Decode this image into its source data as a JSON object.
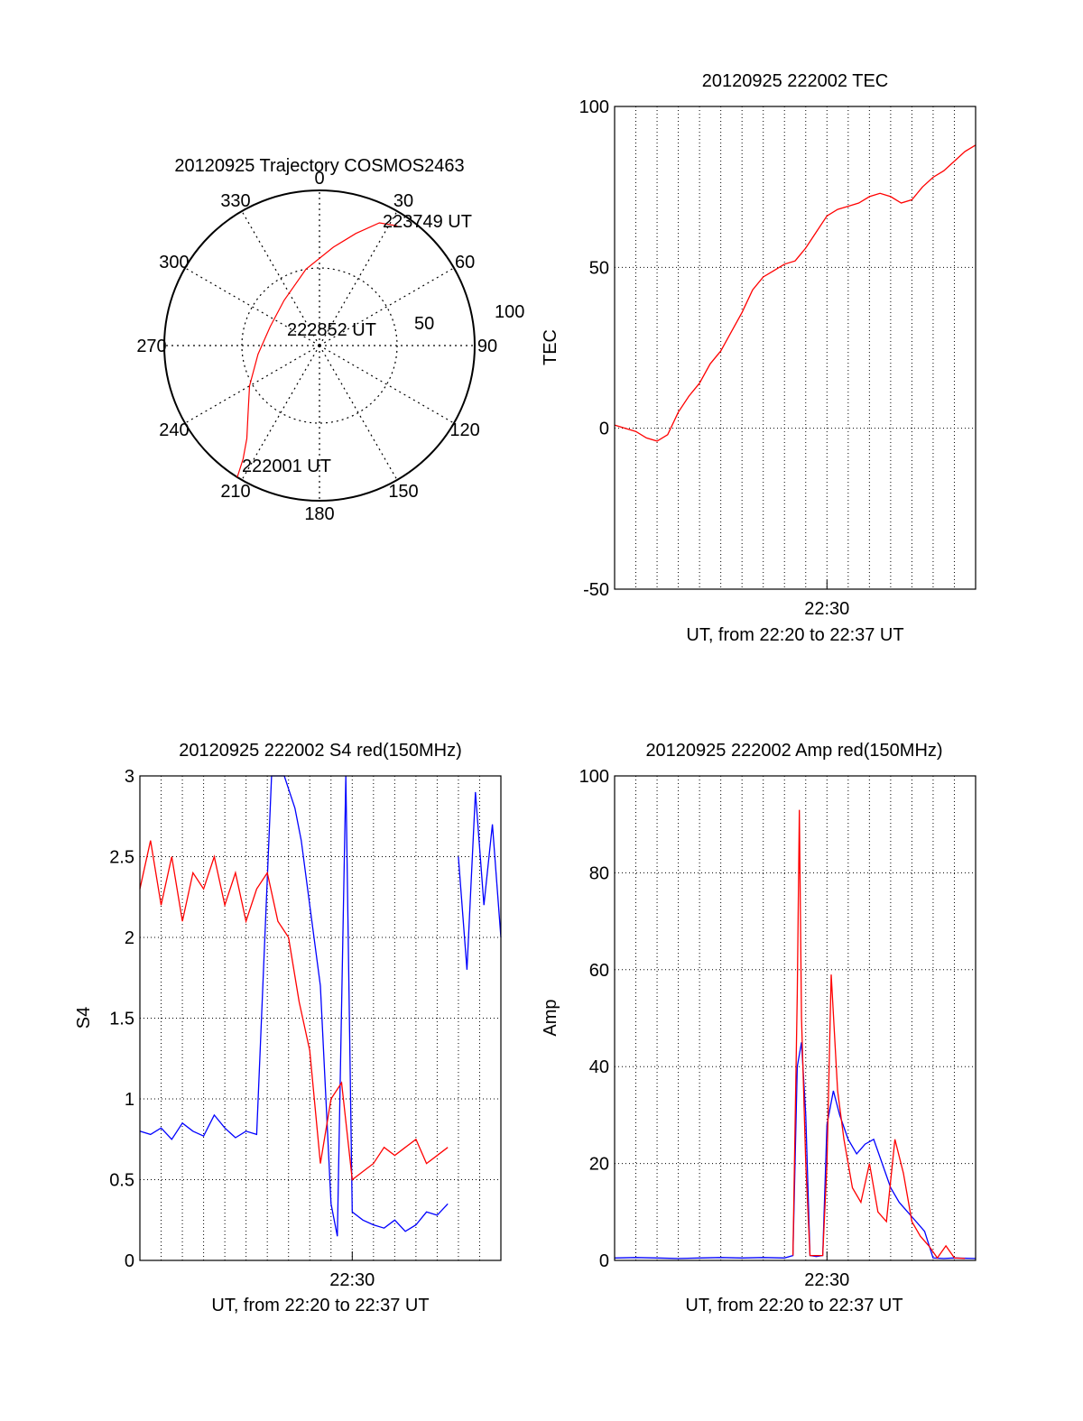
{
  "chart_data": [
    {
      "id": "polar",
      "type": "polar",
      "title": "20120925 Trajectory COSMOS2463",
      "angle_ticks": [
        "0",
        "30",
        "60",
        "90",
        "120",
        "150",
        "180",
        "210",
        "240",
        "270",
        "300",
        "330"
      ],
      "angle_values": [
        0,
        30,
        60,
        90,
        120,
        150,
        180,
        210,
        240,
        270,
        300,
        330
      ],
      "radial_ticks": [
        "50",
        "100"
      ],
      "radial_values": [
        50,
        100
      ],
      "rlim": [
        0,
        100
      ],
      "grid": true,
      "trajectory": {
        "color": "#ff0000",
        "points": [
          {
            "az": 212,
            "r": 100,
            "label": "222001 UT"
          },
          {
            "az": 214,
            "r": 88
          },
          {
            "az": 218,
            "r": 76
          },
          {
            "az": 226,
            "r": 64
          },
          {
            "az": 240,
            "r": 52
          },
          {
            "az": 262,
            "r": 40
          },
          {
            "az": 291,
            "r": 34
          },
          {
            "az": 322,
            "r": 37
          },
          {
            "az": 350,
            "r": 50
          },
          {
            "az": 8,
            "r": 64
          },
          {
            "az": 18,
            "r": 76
          },
          {
            "az": 26,
            "r": 88
          },
          {
            "az": 33,
            "r": 92,
            "label": "223749 UT"
          }
        ]
      },
      "center_label": "222852 UT"
    },
    {
      "id": "tec",
      "type": "line",
      "title": "20120925 222002 TEC",
      "xlabel": "UT, from 22:20 to 22:37 UT",
      "ylabel": "TEC",
      "x_unit": "minutes",
      "xlim": [
        20.0,
        37.0
      ],
      "ylim": [
        -50,
        100
      ],
      "yticks": [
        -50,
        0,
        50,
        100
      ],
      "ytick_labels": [
        "-50",
        "0",
        "50",
        "100"
      ],
      "xticks": [
        30
      ],
      "xtick_labels": [
        "22:30"
      ],
      "x_gridlines": [
        21,
        22,
        23,
        24,
        25,
        26,
        27,
        28,
        29,
        30,
        31,
        32,
        33,
        34,
        35,
        36
      ],
      "series": [
        {
          "color": "#ff0000",
          "x": [
            20.0,
            20.5,
            21.0,
            21.5,
            22.0,
            22.5,
            23.0,
            23.5,
            24.0,
            24.5,
            25.0,
            25.5,
            26.0,
            26.5,
            27.0,
            27.5,
            28.0,
            28.5,
            29.0,
            29.5,
            30.0,
            30.5,
            31.0,
            31.5,
            32.0,
            32.5,
            33.0,
            33.5,
            34.0,
            34.5,
            35.0,
            35.5,
            36.0,
            36.5,
            37.0
          ],
          "y": [
            1,
            0,
            -1,
            -3,
            -4,
            -2,
            5,
            10,
            14,
            20,
            24,
            30,
            36,
            43,
            47,
            49,
            51,
            52,
            56,
            61,
            66,
            68,
            69,
            70,
            72,
            73,
            72,
            70,
            71,
            75,
            78,
            80,
            83,
            86,
            88
          ]
        }
      ]
    },
    {
      "id": "s4",
      "type": "line",
      "title": "20120925 222002 S4 red(150MHz)",
      "xlabel": "UT, from 22:20 to 22:37 UT",
      "ylabel": "S4",
      "x_unit": "minutes",
      "xlim": [
        20.0,
        37.0
      ],
      "ylim": [
        0,
        3
      ],
      "yticks": [
        0,
        0.5,
        1,
        1.5,
        2,
        2.5,
        3
      ],
      "ytick_labels": [
        "0",
        "0.5",
        "1",
        "1.5",
        "2",
        "2.5",
        "3"
      ],
      "xticks": [
        30
      ],
      "xtick_labels": [
        "22:30"
      ],
      "x_gridlines": [
        21,
        22,
        23,
        24,
        25,
        26,
        27,
        28,
        29,
        30,
        31,
        32,
        33,
        34,
        35,
        36
      ],
      "series": [
        {
          "color": "#0000ff",
          "x": [
            20.0,
            20.5,
            21.0,
            21.5,
            22.0,
            22.5,
            23.0,
            23.5,
            24.0,
            24.5,
            25.0,
            25.5,
            26.2,
            26.8,
            27.3,
            27.6,
            28.0,
            28.5,
            29.0,
            29.3,
            29.7,
            30.0,
            30.5,
            31.0,
            31.5,
            32.0,
            32.5,
            33.0,
            33.5,
            34.0,
            34.5
          ],
          "y": [
            0.8,
            0.78,
            0.82,
            0.75,
            0.85,
            0.8,
            0.77,
            0.9,
            0.82,
            0.76,
            0.8,
            0.78,
            3.0,
            3.0,
            2.8,
            2.6,
            2.2,
            1.7,
            0.35,
            0.15,
            3.0,
            0.3,
            0.25,
            0.22,
            0.2,
            0.25,
            0.18,
            0.22,
            0.3,
            0.28,
            0.35
          ]
        },
        {
          "color": "#ff0000",
          "x": [
            20.0,
            20.5,
            21.0,
            21.5,
            22.0,
            22.5,
            23.0,
            23.5,
            24.0,
            24.5,
            25.0,
            25.5,
            26.0,
            26.5,
            27.0,
            27.5,
            28.0,
            28.5,
            29.0,
            29.5,
            30.0,
            30.5,
            31.0,
            31.5,
            32.0,
            32.5,
            33.0,
            33.5,
            34.0,
            34.5
          ],
          "y": [
            2.3,
            2.6,
            2.2,
            2.5,
            2.1,
            2.4,
            2.3,
            2.5,
            2.2,
            2.4,
            2.1,
            2.3,
            2.4,
            2.1,
            2.0,
            1.6,
            1.3,
            0.6,
            1.0,
            1.1,
            0.5,
            0.55,
            0.6,
            0.7,
            0.65,
            0.7,
            0.75,
            0.6,
            0.65,
            0.7
          ]
        },
        {
          "color": "#0000ff",
          "x": [
            35.0,
            35.4,
            35.8,
            36.2,
            36.6,
            37.0
          ],
          "y": [
            2.5,
            1.8,
            2.9,
            2.2,
            2.7,
            2.0
          ]
        }
      ]
    },
    {
      "id": "amp",
      "type": "line",
      "title": "20120925 222002 Amp red(150MHz)",
      "xlabel": "UT, from 22:20 to 22:37 UT",
      "ylabel": "Amp",
      "x_unit": "minutes",
      "xlim": [
        20.0,
        37.0
      ],
      "ylim": [
        0,
        100
      ],
      "yticks": [
        0,
        20,
        40,
        60,
        80,
        100
      ],
      "ytick_labels": [
        "0",
        "20",
        "40",
        "60",
        "80",
        "100"
      ],
      "xticks": [
        30
      ],
      "xtick_labels": [
        "22:30"
      ],
      "x_gridlines": [
        21,
        22,
        23,
        24,
        25,
        26,
        27,
        28,
        29,
        30,
        31,
        32,
        33,
        34,
        35,
        36
      ],
      "series": [
        {
          "color": "#0000ff",
          "x": [
            20.0,
            21.0,
            22.0,
            23.0,
            24.0,
            25.0,
            26.0,
            27.0,
            28.0,
            28.4,
            28.6,
            28.8,
            29.0,
            29.2,
            29.5,
            29.8,
            30.0,
            30.3,
            30.6,
            31.0,
            31.4,
            31.8,
            32.2,
            32.6,
            33.0,
            33.4,
            33.8,
            34.2,
            34.6,
            35.0,
            35.5,
            36.0,
            37.0
          ],
          "y": [
            0.5,
            0.6,
            0.5,
            0.4,
            0.5,
            0.6,
            0.5,
            0.6,
            0.5,
            1.0,
            40,
            45,
            30,
            1.0,
            0.8,
            1.0,
            28,
            35,
            30,
            25,
            22,
            24,
            25,
            20,
            15,
            12,
            10,
            8,
            6,
            0.5,
            0.4,
            0.5,
            0.4
          ]
        },
        {
          "color": "#ff0000",
          "x": [
            28.4,
            28.6,
            28.7,
            28.8,
            29.0,
            29.2,
            29.8,
            30.0,
            30.2,
            30.5,
            30.8,
            31.2,
            31.6,
            32.0,
            32.4,
            32.8,
            33.2,
            33.6,
            34.0,
            34.4,
            34.8,
            35.2,
            35.6,
            36.0,
            36.5
          ],
          "y": [
            1.0,
            55,
            93,
            50,
            20,
            1.0,
            1.0,
            20,
            59,
            35,
            25,
            15,
            12,
            20,
            10,
            8,
            25,
            18,
            8,
            5,
            3,
            0.5,
            3,
            0.5,
            0.4
          ]
        }
      ]
    }
  ]
}
